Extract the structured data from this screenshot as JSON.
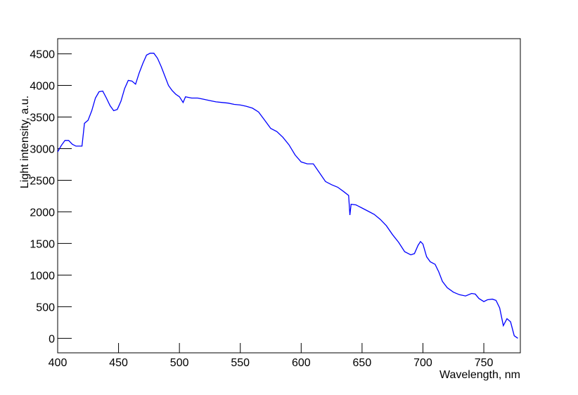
{
  "chart_data": {
    "type": "line",
    "step": true,
    "color": "#0000ff",
    "xlabel": "Wavelength, nm",
    "ylabel": "Light intensity, a.u.",
    "xlim": [
      400,
      780
    ],
    "ylim": [
      -230,
      4740
    ],
    "xticks": [
      400,
      450,
      500,
      550,
      600,
      650,
      700,
      750
    ],
    "yticks": [
      0,
      500,
      1000,
      1500,
      2000,
      2500,
      3000,
      3500,
      4000,
      4500
    ],
    "x": [
      400,
      403,
      406,
      409,
      412,
      415,
      420,
      422,
      425,
      428,
      431,
      434,
      437,
      440,
      443,
      446,
      449,
      452,
      455,
      458,
      461,
      464,
      467,
      470,
      473,
      476,
      479,
      482,
      485,
      488,
      491,
      494,
      497,
      500,
      503,
      505,
      510,
      515,
      520,
      525,
      530,
      535,
      540,
      545,
      550,
      555,
      560,
      565,
      570,
      575,
      580,
      585,
      590,
      595,
      600,
      605,
      610,
      615,
      620,
      625,
      630,
      635,
      639,
      640,
      641,
      645,
      650,
      655,
      660,
      665,
      670,
      675,
      680,
      685,
      690,
      693,
      696,
      698,
      700,
      703,
      706,
      710,
      713,
      716,
      720,
      725,
      730,
      735,
      740,
      743,
      746,
      750,
      753,
      757,
      760,
      763,
      766,
      769,
      772,
      775,
      778
    ],
    "y": [
      2950,
      3050,
      3130,
      3130,
      3070,
      3040,
      3040,
      3400,
      3450,
      3600,
      3800,
      3900,
      3910,
      3800,
      3680,
      3600,
      3620,
      3750,
      3950,
      4080,
      4070,
      4020,
      4200,
      4350,
      4480,
      4510,
      4510,
      4430,
      4300,
      4150,
      4000,
      3920,
      3860,
      3820,
      3730,
      3820,
      3800,
      3800,
      3780,
      3760,
      3740,
      3730,
      3720,
      3700,
      3690,
      3670,
      3640,
      3580,
      3450,
      3320,
      3270,
      3180,
      3060,
      2900,
      2790,
      2760,
      2760,
      2620,
      2480,
      2430,
      2390,
      2320,
      2260,
      1950,
      2120,
      2110,
      2060,
      2010,
      1960,
      1880,
      1780,
      1640,
      1520,
      1370,
      1320,
      1340,
      1470,
      1530,
      1490,
      1290,
      1210,
      1170,
      1050,
      900,
      800,
      730,
      690,
      670,
      710,
      700,
      630,
      580,
      610,
      620,
      600,
      480,
      200,
      310,
      260,
      40,
      0
    ]
  }
}
